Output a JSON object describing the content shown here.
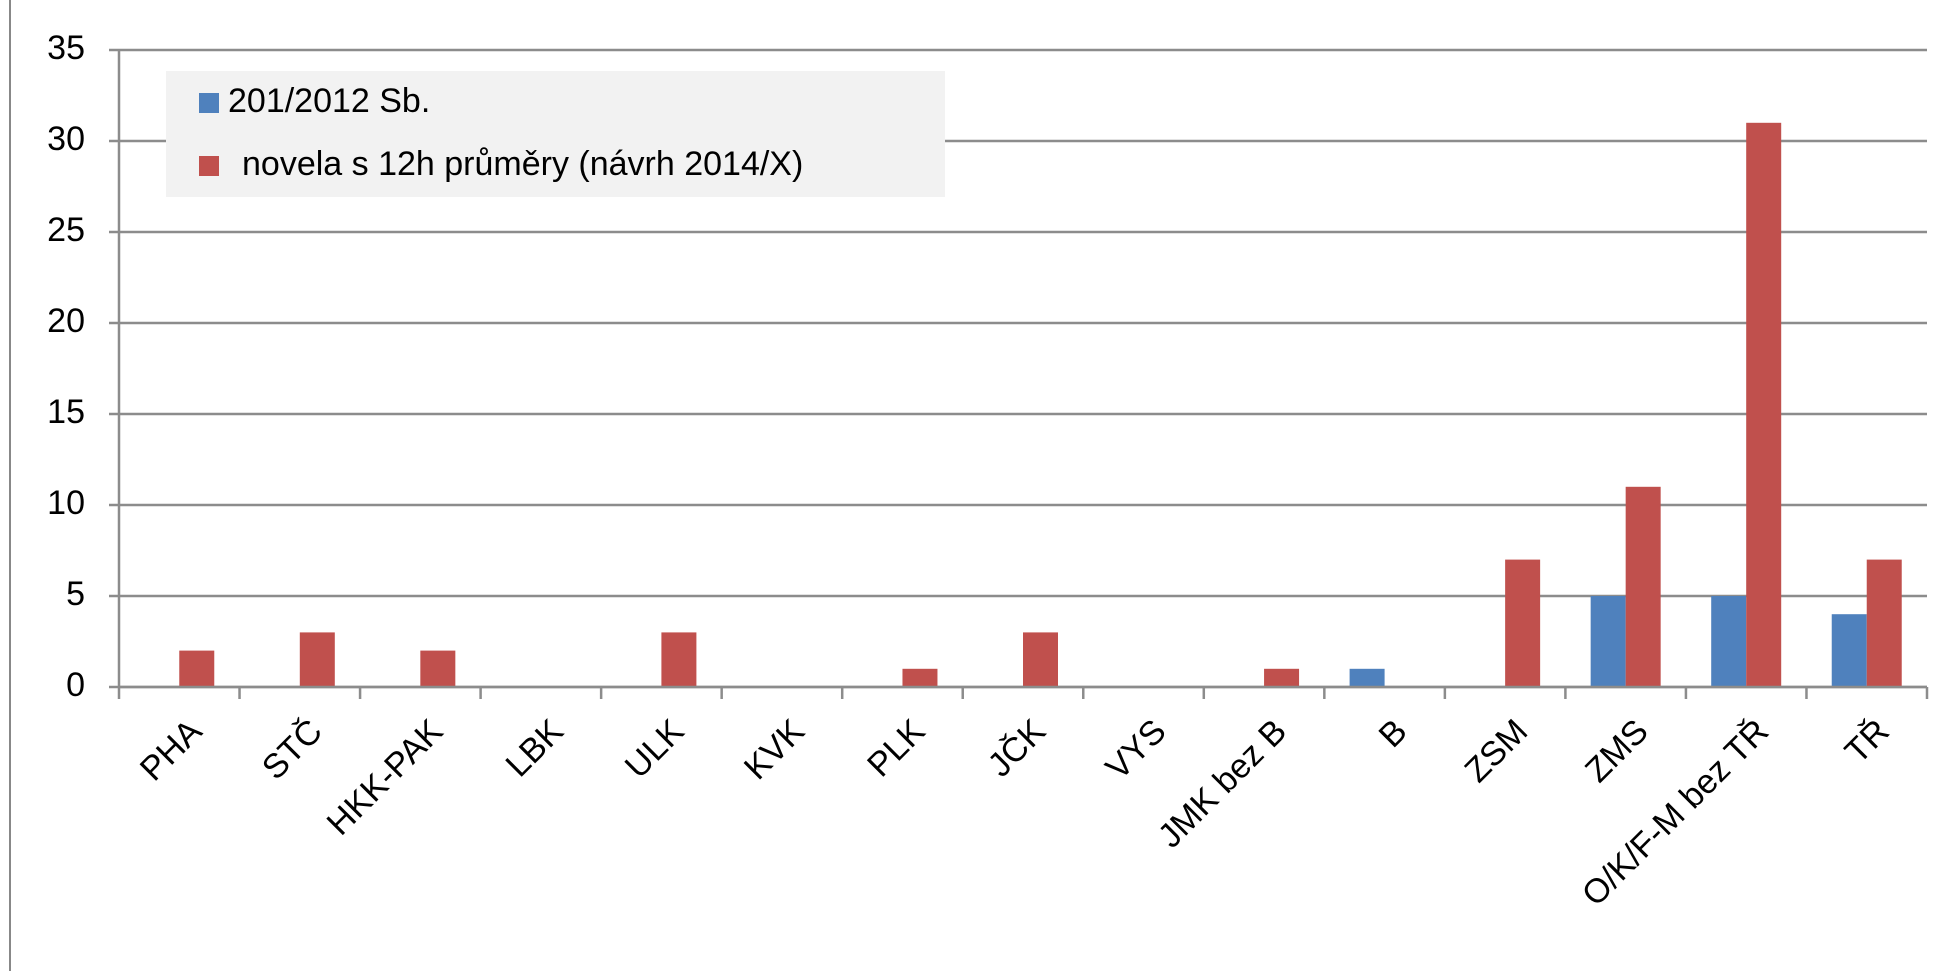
{
  "chart_data": {
    "type": "bar",
    "categories": [
      "PHA",
      "STČ",
      "HKK-PAK",
      "LBK",
      "ULK",
      "KVK",
      "PLK",
      "JČK",
      "VYS",
      "JMK bez B",
      "B",
      "ZSM",
      "ZMS",
      "O/K/F-M bez TŘ",
      "TŘ"
    ],
    "series": [
      {
        "name": "201/2012 Sb.",
        "color": "#4f81bd",
        "values": [
          0,
          0,
          0,
          0,
          0,
          0,
          0,
          0,
          0,
          0,
          1,
          0,
          5,
          5,
          4
        ]
      },
      {
        "name": "novela s 12h průměry (návrh 2014/X)",
        "color": "#c0504d",
        "values": [
          2,
          3,
          2,
          0,
          3,
          0,
          1,
          3,
          0,
          1,
          0,
          7,
          11,
          31,
          7
        ]
      }
    ],
    "ylim": [
      0,
      35
    ],
    "yticks": [
      0,
      5,
      10,
      15,
      20,
      25,
      30,
      35
    ],
    "grid": true,
    "legend": "upper left"
  }
}
